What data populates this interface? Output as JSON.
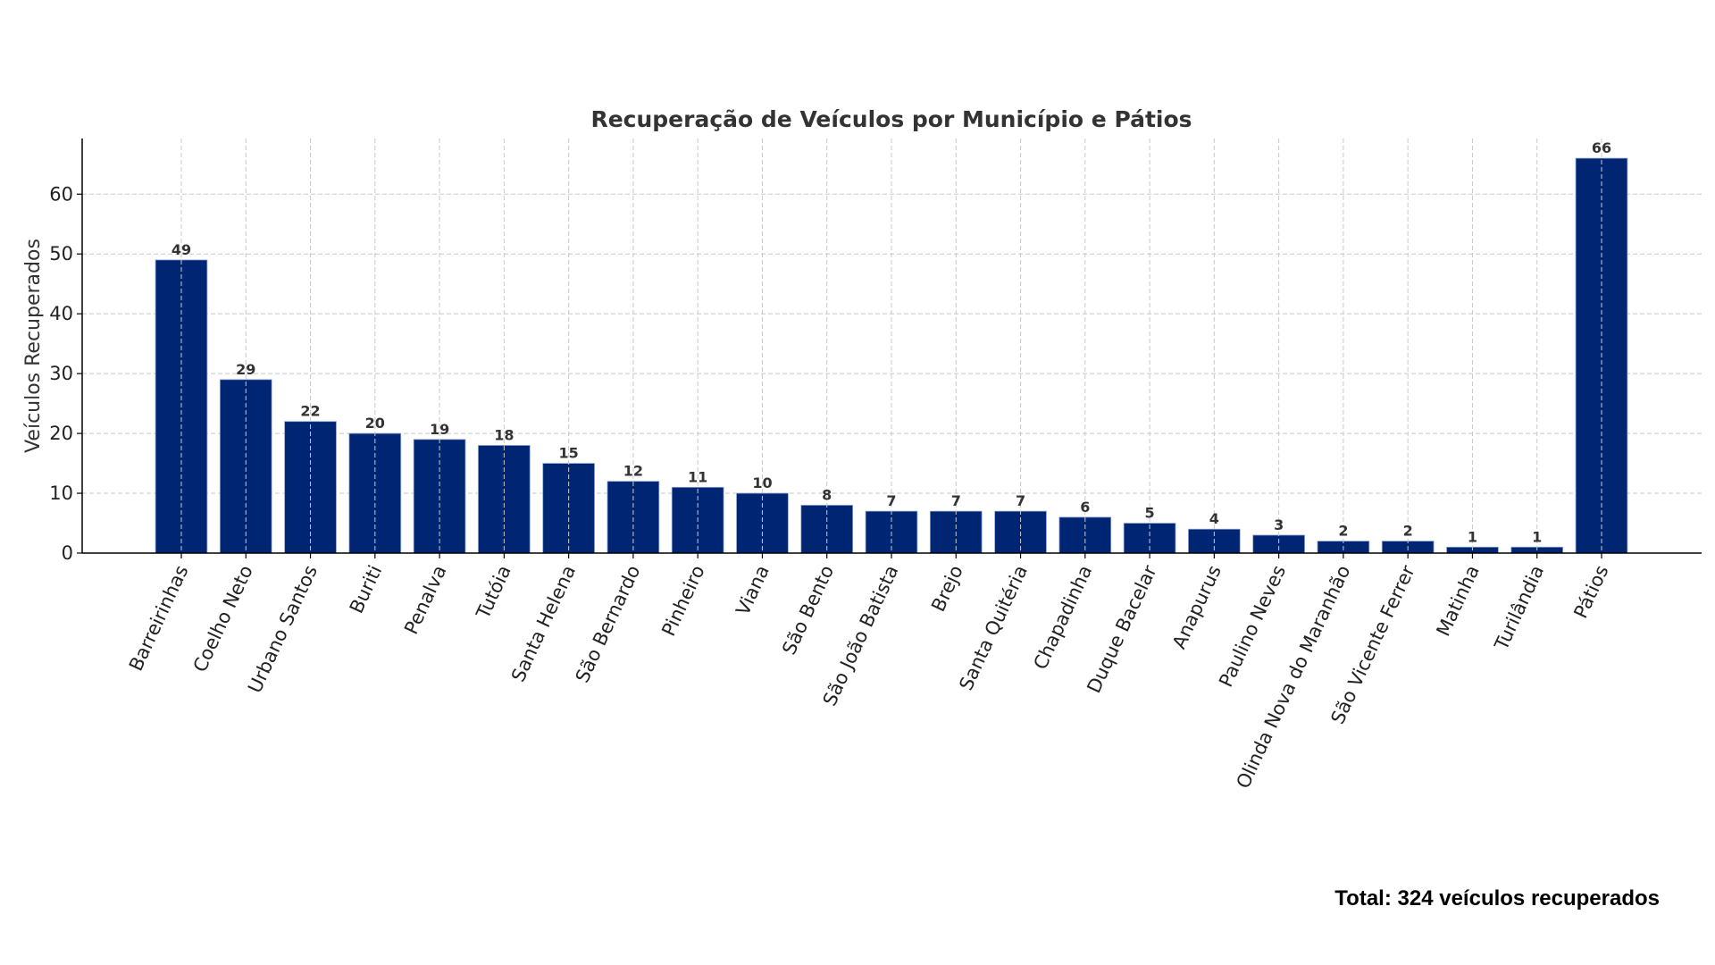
{
  "chart_data": {
    "type": "bar",
    "title": "Recuperação de Veículos por Município e Pátios",
    "xlabel": "",
    "ylabel": "Veículos Recuperados",
    "ylim": [
      0,
      69.3
    ],
    "yticks": [
      0,
      10,
      20,
      30,
      40,
      50,
      60
    ],
    "grid": true,
    "bar_color": "#002673",
    "categories": [
      "Barreirinhas",
      "Coelho Neto",
      "Urbano Santos",
      "Buriti",
      "Penalva",
      "Tutóia",
      "Santa Helena",
      "São Bernardo",
      "Pinheiro",
      "Viana",
      "São Bento",
      "São João Batista",
      "Brejo",
      "Santa Quitéria",
      "Chapadinha",
      "Duque Bacelar",
      "Anapurus",
      "Paulino Neves",
      "Olinda Nova do Maranhão",
      "São Vicente Ferrer",
      "Matinha",
      "Turilândia",
      "Pátios"
    ],
    "values": [
      49,
      29,
      22,
      20,
      19,
      18,
      15,
      12,
      11,
      10,
      8,
      7,
      7,
      7,
      6,
      5,
      4,
      3,
      2,
      2,
      1,
      1,
      66
    ]
  },
  "footer": {
    "total_label": "Total:",
    "total_text": "324 veículos recuperados"
  }
}
